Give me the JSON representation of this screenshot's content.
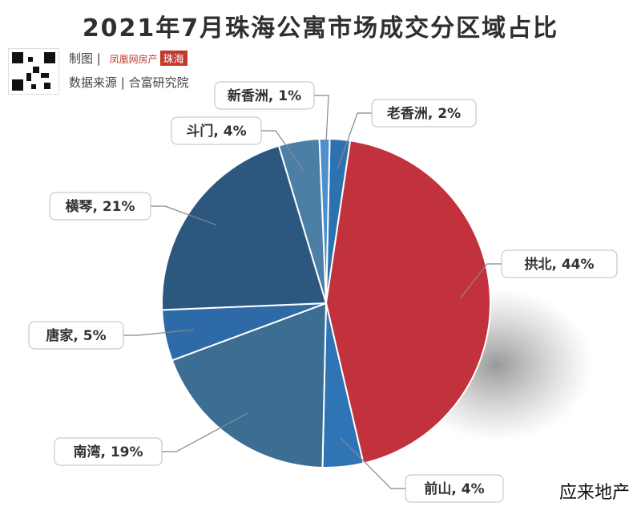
{
  "title": "2021年7月珠海公寓市场成交分区域占比",
  "meta": {
    "made_by_label": "制图",
    "brand_text": "凤凰网房产",
    "brand_tag": "珠海",
    "source_label": "数据来源",
    "source_name": "合富研究院"
  },
  "credit": "应来地产",
  "chart_data": {
    "type": "pie",
    "title": "2021年7月珠海公寓市场成交分区域占比",
    "unit": "%",
    "slices": [
      {
        "name": "老香洲",
        "value": 2,
        "label": "老香洲, 2%",
        "color": "#2d72b0"
      },
      {
        "name": "拱北",
        "value": 44,
        "label": "拱北, 44%",
        "color": "#c2323d"
      },
      {
        "name": "前山",
        "value": 4,
        "label": "前山, 4%",
        "color": "#2f74b5"
      },
      {
        "name": "南湾",
        "value": 19,
        "label": "南湾, 19%",
        "color": "#3c6e93"
      },
      {
        "name": "唐家",
        "value": 5,
        "label": "唐家, 5%",
        "color": "#2f6aa8"
      },
      {
        "name": "横琴",
        "value": 21,
        "label": "横琴, 21%",
        "color": "#2c577f"
      },
      {
        "name": "斗门",
        "value": 4,
        "label": "斗门, 4%",
        "color": "#4c7fa6"
      },
      {
        "name": "新香洲",
        "value": 1,
        "label": "新香洲, 1%",
        "color": "#4a90d0"
      }
    ]
  }
}
